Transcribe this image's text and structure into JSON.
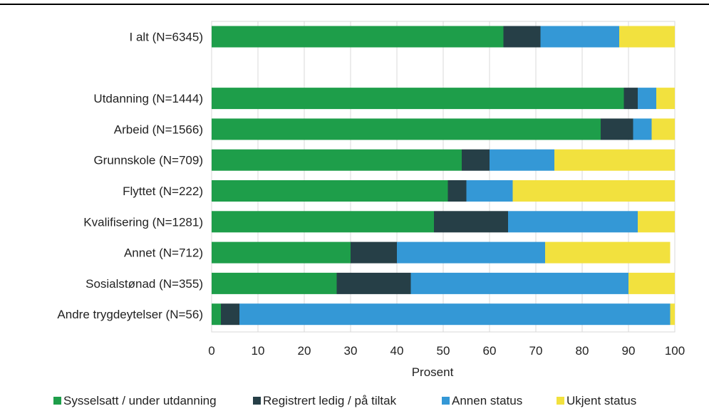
{
  "chart_data": {
    "type": "bar",
    "orientation": "horizontal",
    "stacked": true,
    "title": "",
    "xlabel": "Prosent",
    "ylabel": "",
    "xlim": [
      0,
      100
    ],
    "xticks": [
      "0",
      "10",
      "20",
      "30",
      "40",
      "50",
      "60",
      "70",
      "80",
      "90",
      "100"
    ],
    "grid": true,
    "legend_position": "bottom",
    "categories": [
      "I alt (N=6345)",
      "",
      "Utdanning (N=1444)",
      "Arbeid (N=1566)",
      "Grunnskole (N=709)",
      "Flyttet (N=222)",
      "Kvalifisering (N=1281)",
      "Annet (N=712)",
      "Sosialstønad (N=355)",
      "Andre trygdeytelser (N=56)"
    ],
    "series": [
      {
        "name": "Sysselsatt / under utdanning",
        "color": "#1e9e4a",
        "values": [
          63,
          null,
          89,
          84,
          54,
          51,
          48,
          30,
          27,
          2
        ]
      },
      {
        "name": "Registrert ledig / på tiltak",
        "color": "#263f47",
        "values": [
          8,
          null,
          3,
          7,
          6,
          4,
          16,
          10,
          16,
          4
        ]
      },
      {
        "name": "Annen status",
        "color": "#3498d6",
        "values": [
          17,
          null,
          4,
          4,
          14,
          10,
          28,
          32,
          47,
          93
        ]
      },
      {
        "name": "Ukjent status",
        "color": "#f2e13e",
        "values": [
          12,
          null,
          4,
          5,
          26,
          35,
          8,
          27,
          10,
          1
        ]
      }
    ]
  }
}
